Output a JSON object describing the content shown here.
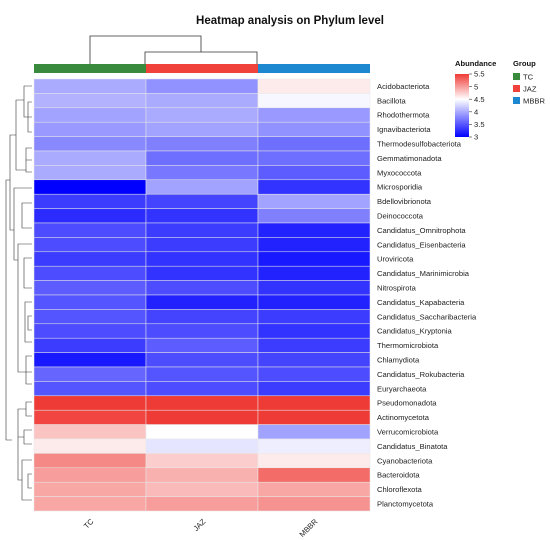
{
  "chart_data": {
    "type": "heatmap",
    "title": "Heatmap analysis on Phylum level",
    "columns": [
      "TC",
      "JAZ",
      "MBBR"
    ],
    "rows": [
      "Acidobacteriota",
      "Bacillota",
      "Rhodothermota",
      "Ignavibacteriota",
      "Thermodesulfobacteriota",
      "Gemmatimonadota",
      "Myxococcota",
      "Microsporidia",
      "Bdellovibrionota",
      "Deinococcota",
      "Candidatus_Omnitrophota",
      "Candidatus_Eisenbacteria",
      "Uroviricota",
      "Candidatus_Marinimicrobia",
      "Nitrospirota",
      "Candidatus_Kapabacteria",
      "Candidatus_Saccharibacteria",
      "Candidatus_Kryptonia",
      "Thermomicrobiota",
      "Chlamydiota",
      "Candidatus_Rokubacteria",
      "Euryarchaeota",
      "Pseudomonadota",
      "Actinomycetota",
      "Verrucomicrobiota",
      "Candidatus_Binatota",
      "Cyanobacteriota",
      "Bacteroidota",
      "Chloroflexota",
      "Planctomycetota"
    ],
    "values": [
      [
        4.0,
        3.85,
        4.6
      ],
      [
        4.05,
        4.0,
        4.45
      ],
      [
        3.95,
        4.0,
        3.9
      ],
      [
        3.9,
        3.95,
        3.85
      ],
      [
        3.8,
        3.75,
        3.65
      ],
      [
        4.0,
        3.65,
        3.65
      ],
      [
        4.0,
        3.7,
        3.55
      ],
      [
        3.0,
        3.95,
        3.3
      ],
      [
        3.35,
        3.4,
        3.95
      ],
      [
        3.25,
        3.3,
        3.75
      ],
      [
        3.45,
        3.35,
        3.2
      ],
      [
        3.45,
        3.35,
        3.2
      ],
      [
        3.35,
        3.3,
        3.15
      ],
      [
        3.45,
        3.3,
        3.2
      ],
      [
        3.55,
        3.45,
        3.3
      ],
      [
        3.5,
        3.2,
        3.2
      ],
      [
        3.5,
        3.4,
        3.35
      ],
      [
        3.45,
        3.45,
        3.3
      ],
      [
        3.35,
        3.55,
        3.35
      ],
      [
        3.15,
        3.45,
        3.4
      ],
      [
        3.6,
        3.5,
        3.45
      ],
      [
        3.5,
        3.45,
        3.35
      ],
      [
        5.55,
        5.65,
        5.55
      ],
      [
        5.45,
        5.55,
        5.5
      ],
      [
        4.8,
        4.5,
        3.95
      ],
      [
        4.6,
        4.35,
        4.4
      ],
      [
        5.1,
        4.75,
        4.6
      ],
      [
        5.0,
        4.9,
        5.25
      ],
      [
        4.95,
        4.85,
        4.95
      ],
      [
        4.95,
        5.0,
        5.05
      ]
    ],
    "color_scale": {
      "min": 3,
      "mid": 4.5,
      "max": 5.5,
      "low_color": "#0000ff",
      "mid_color": "#ffffff",
      "high_color": "#ef3b36"
    },
    "legend": {
      "abundance_title": "Abundance",
      "ticks": [
        "5.5",
        "5",
        "4.5",
        "4",
        "3.5",
        "3"
      ],
      "group_title": "Group",
      "groups": [
        {
          "name": "TC",
          "color": "#3a8a3d"
        },
        {
          "name": "JAZ",
          "color": "#f0413a"
        },
        {
          "name": "MBBR",
          "color": "#1d88d0"
        }
      ],
      "placement": "right"
    }
  }
}
